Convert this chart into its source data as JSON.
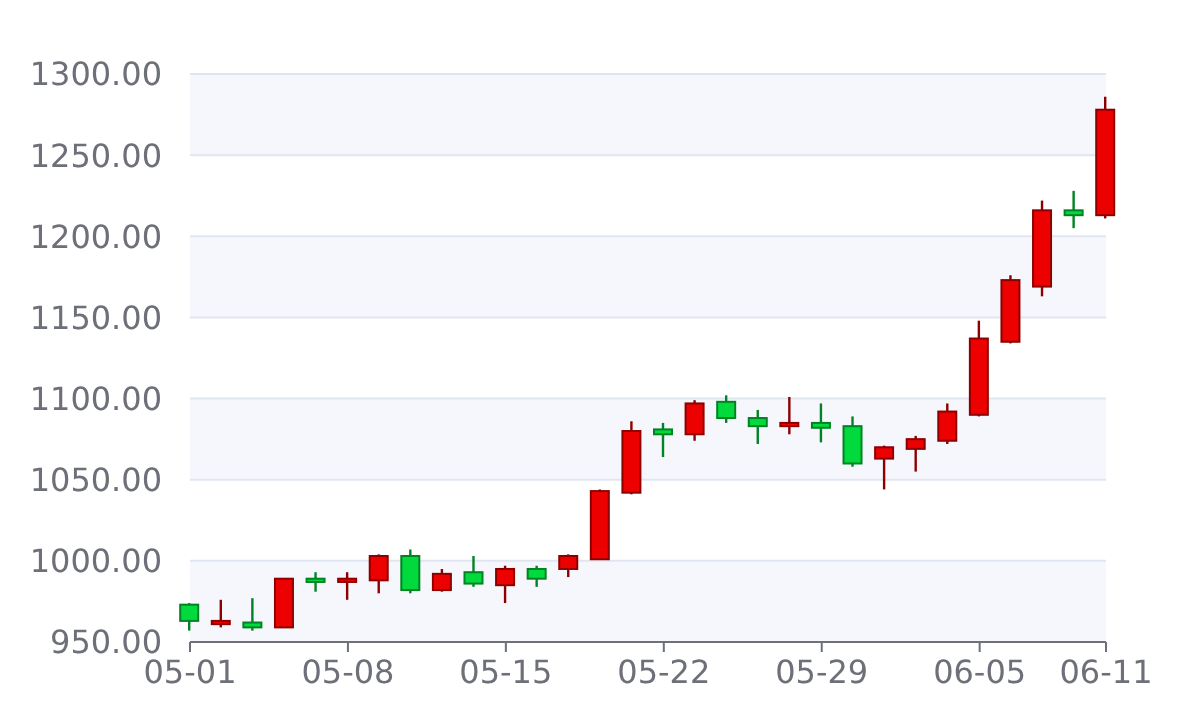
{
  "chart_data": {
    "type": "candlestick",
    "categories": [
      "05-01",
      null,
      null,
      null,
      null,
      "05-08",
      null,
      null,
      null,
      null,
      "05-15",
      null,
      null,
      null,
      null,
      "05-22",
      null,
      null,
      null,
      null,
      "05-29",
      null,
      null,
      null,
      null,
      "06-05",
      null,
      null,
      null,
      "06-11"
    ],
    "ohlc": [
      [
        973,
        974,
        957,
        963
      ],
      [
        961,
        976,
        959,
        963
      ],
      [
        962,
        977,
        957,
        959
      ],
      [
        959,
        989,
        959,
        989
      ],
      [
        989,
        993,
        981,
        987
      ],
      [
        987,
        993,
        976,
        989
      ],
      [
        988,
        1004,
        980,
        1003
      ],
      [
        1003,
        1007,
        980,
        982
      ],
      [
        982,
        995,
        981,
        992
      ],
      [
        993,
        1003,
        984,
        986
      ],
      [
        985,
        997,
        974,
        995
      ],
      [
        995,
        997,
        984,
        989
      ],
      [
        995,
        1004,
        990,
        1003
      ],
      [
        1001,
        1044,
        1001,
        1043
      ],
      [
        1042,
        1086,
        1041,
        1080
      ],
      [
        1081,
        1085,
        1064,
        1078
      ],
      [
        1078,
        1099,
        1074,
        1097
      ],
      [
        1098,
        1102,
        1085,
        1088
      ],
      [
        1088,
        1093,
        1072,
        1083
      ],
      [
        1083,
        1101,
        1078,
        1085
      ],
      [
        1085,
        1097,
        1073,
        1082
      ],
      [
        1083,
        1089,
        1058,
        1060
      ],
      [
        1063,
        1071,
        1044,
        1070
      ],
      [
        1069,
        1077,
        1055,
        1075
      ],
      [
        1074,
        1097,
        1072,
        1092
      ],
      [
        1090,
        1148,
        1089,
        1137
      ],
      [
        1135,
        1176,
        1134,
        1173
      ],
      [
        1169,
        1222,
        1163,
        1216
      ],
      [
        1216,
        1228,
        1205,
        1213
      ],
      [
        1213,
        1286,
        1211,
        1278
      ]
    ],
    "colors": [
      "#00da3c",
      "#ec0000",
      "#00da3c",
      "#ec0000",
      "#00da3c",
      "#ec0000",
      "#ec0000",
      "#00da3c",
      "#ec0000",
      "#00da3c",
      "#ec0000",
      "#00da3c",
      "#ec0000",
      "#ec0000",
      "#ec0000",
      "#00da3c",
      "#ec0000",
      "#00da3c",
      "#00da3c",
      "#ec0000",
      "#00da3c",
      "#00da3c",
      "#ec0000",
      "#ec0000",
      "#ec0000",
      "#ec0000",
      "#ec0000",
      "#ec0000",
      "#00da3c",
      "#ec0000"
    ],
    "ylim": [
      950,
      1300
    ],
    "yticks": [
      {
        "value": 950,
        "label": "950.00"
      },
      {
        "value": 1000,
        "label": "1000.00"
      },
      {
        "value": 1050,
        "label": "1050.00"
      },
      {
        "value": 1100,
        "label": "1100.00"
      },
      {
        "value": 1150,
        "label": "1150.00"
      },
      {
        "value": 1200,
        "label": "1200.00"
      },
      {
        "value": 1250,
        "label": "1250.00"
      },
      {
        "value": 1300,
        "label": "1300.00"
      }
    ],
    "grid": "y"
  }
}
